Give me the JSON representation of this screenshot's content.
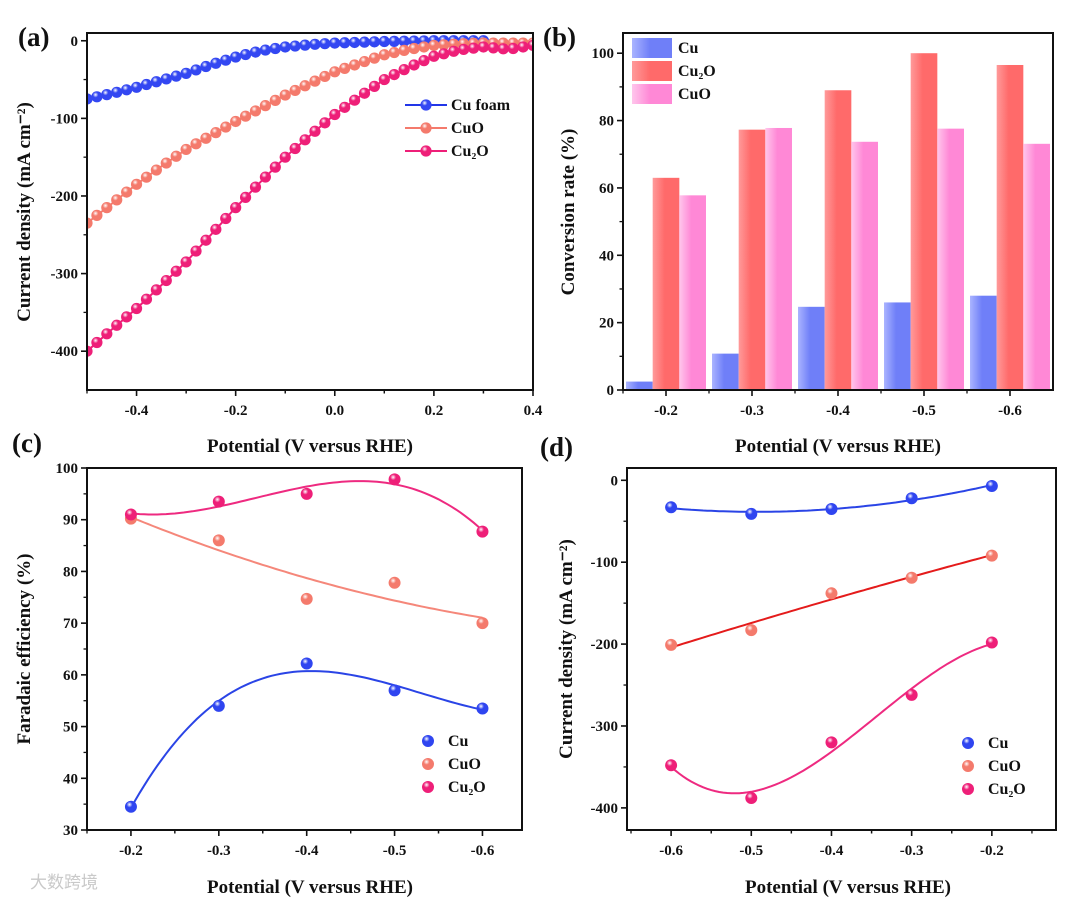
{
  "watermark": "大数跨境",
  "chart_data": [
    {
      "panel": "(a)",
      "type": "line",
      "xlabel": "Potential (V versus RHE)",
      "ylabel": "Current density (mA cm⁻²)",
      "xlim": [
        -0.5,
        0.4
      ],
      "ylim": [
        -450,
        10
      ],
      "xticks": [
        -0.4,
        -0.2,
        0.0,
        0.2,
        0.4
      ],
      "xtick_labels": [
        "-0.4",
        "-0.2",
        "0.0",
        "0.2",
        "0.4"
      ],
      "yticks": [
        0,
        -100,
        -200,
        -300,
        -400
      ],
      "ytick_labels": [
        "0",
        "-100",
        "-200",
        "-300",
        "-400"
      ],
      "legend": "top-right",
      "x": [
        -0.5,
        -0.45,
        -0.4,
        -0.35,
        -0.3,
        -0.25,
        -0.2,
        -0.15,
        -0.1,
        -0.05,
        0.0,
        0.05,
        0.1,
        0.15,
        0.2,
        0.25,
        0.3,
        0.35,
        0.4
      ],
      "series": [
        {
          "name": "Cu foam",
          "color": "#2236e8",
          "marker": "#3347f2",
          "values": [
            -75,
            -68,
            -60,
            -51,
            -42,
            -31,
            -21,
            -13,
            -8,
            -5,
            -3,
            -2,
            -1,
            -0.5,
            0,
            0,
            0,
            null,
            null
          ]
        },
        {
          "name": "CuO",
          "color": "#f47a6c",
          "marker": "#f47a6c",
          "values": [
            -235,
            -210,
            -185,
            -162,
            -140,
            -122,
            -104,
            -87,
            -70,
            -55,
            -40,
            -29,
            -18,
            -11,
            -6,
            -4,
            -3,
            -3,
            -3
          ]
        },
        {
          "name": "Cu₂O",
          "color": "#ee1f78",
          "marker": "#ee1f78",
          "values": [
            -400,
            -372,
            -345,
            -315,
            -285,
            -250,
            -215,
            -182,
            -150,
            -122,
            -95,
            -72,
            -50,
            -34,
            -20,
            -12,
            -8,
            -11,
            -6
          ]
        }
      ]
    },
    {
      "panel": "(b)",
      "type": "bar",
      "xlabel": "Potential (V versus RHE)",
      "ylabel": "Conversion rate (%)",
      "categories": [
        "-0.2",
        "-0.3",
        "-0.4",
        "-0.5",
        "-0.6"
      ],
      "ylim": [
        0,
        106
      ],
      "yticks": [
        0,
        20,
        40,
        60,
        80,
        100
      ],
      "ytick_labels": [
        "0",
        "20",
        "40",
        "60",
        "80",
        "100"
      ],
      "legend": "top-left",
      "series": [
        {
          "name": "Cu",
          "color": "#6f7ff8",
          "light": "#aab4ff",
          "values": [
            2.5,
            10.8,
            24.7,
            26.0,
            28.0
          ]
        },
        {
          "name": "Cu₂O",
          "color": "#ff6a6a",
          "light": "#ff9a9a",
          "values": [
            63.0,
            77.3,
            89.0,
            100.0,
            96.5
          ]
        },
        {
          "name": "CuO",
          "color": "#ff88d6",
          "light": "#ffc6ec",
          "values": [
            57.8,
            77.8,
            73.7,
            77.6,
            73.1
          ]
        }
      ]
    },
    {
      "panel": "(c)",
      "type": "scatter",
      "xlabel": "Potential (V versus RHE)",
      "ylabel": "Faradaic efficiency (%)",
      "xlim": [
        -0.15,
        -0.645
      ],
      "ylim": [
        30,
        100
      ],
      "xticks": [
        -0.2,
        -0.3,
        -0.4,
        -0.5,
        -0.6
      ],
      "xtick_labels": [
        "-0.2",
        "-0.3",
        "-0.4",
        "-0.5",
        "-0.6"
      ],
      "yticks": [
        30,
        40,
        50,
        60,
        70,
        80,
        90,
        100
      ],
      "ytick_labels": [
        "30",
        "40",
        "50",
        "60",
        "70",
        "80",
        "90",
        "100"
      ],
      "legend": "bottom-right",
      "x": [
        -0.2,
        -0.3,
        -0.4,
        -0.5,
        -0.6
      ],
      "series": [
        {
          "name": "Cu",
          "color": "#2a44e6",
          "marker": "#2f45f0",
          "fit_degree": 3,
          "values": [
            34.5,
            54.0,
            62.2,
            57.0,
            53.5
          ]
        },
        {
          "name": "CuO",
          "color": "#f5877a",
          "marker": "#f47a6c",
          "fit_degree": 2,
          "values": [
            90.2,
            86.0,
            74.7,
            77.8,
            70.0
          ]
        },
        {
          "name": "Cu₂O",
          "color": "#ee2a80",
          "marker": "#ee1f78",
          "fit_degree": 3,
          "values": [
            91.0,
            93.5,
            95.0,
            97.8,
            87.7
          ]
        }
      ]
    },
    {
      "panel": "(d)",
      "type": "scatter",
      "xlabel": "Potential (V versus RHE)",
      "ylabel": "Current density (mA cm⁻²)",
      "xlim": [
        -0.655,
        -0.12
      ],
      "ylim": [
        -427,
        15
      ],
      "xticks": [
        -0.6,
        -0.5,
        -0.4,
        -0.3,
        -0.2
      ],
      "xtick_labels": [
        "-0.6",
        "-0.5",
        "-0.4",
        "-0.3",
        "-0.2"
      ],
      "yticks": [
        0,
        -100,
        -200,
        -300,
        -400
      ],
      "ytick_labels": [
        "0",
        "-100",
        "-200",
        "-300",
        "-400"
      ],
      "legend": "bottom-right",
      "x": [
        -0.6,
        -0.5,
        -0.4,
        -0.3,
        -0.2
      ],
      "series": [
        {
          "name": "Cu",
          "color": "#2a44e6",
          "marker": "#2f45f0",
          "fit_degree": 2,
          "values": [
            -33,
            -41,
            -35,
            -22,
            -7
          ]
        },
        {
          "name": "CuO",
          "color": "#e41b1b",
          "marker": "#f47a6c",
          "fit_degree": 2,
          "values": [
            -201,
            -183,
            -138,
            -119,
            -92
          ]
        },
        {
          "name": "Cu₂O",
          "color": "#ee2a80",
          "marker": "#ee1f78",
          "fit_degree": 3,
          "values": [
            -348,
            -388,
            -320,
            -262,
            -198
          ]
        }
      ]
    }
  ]
}
